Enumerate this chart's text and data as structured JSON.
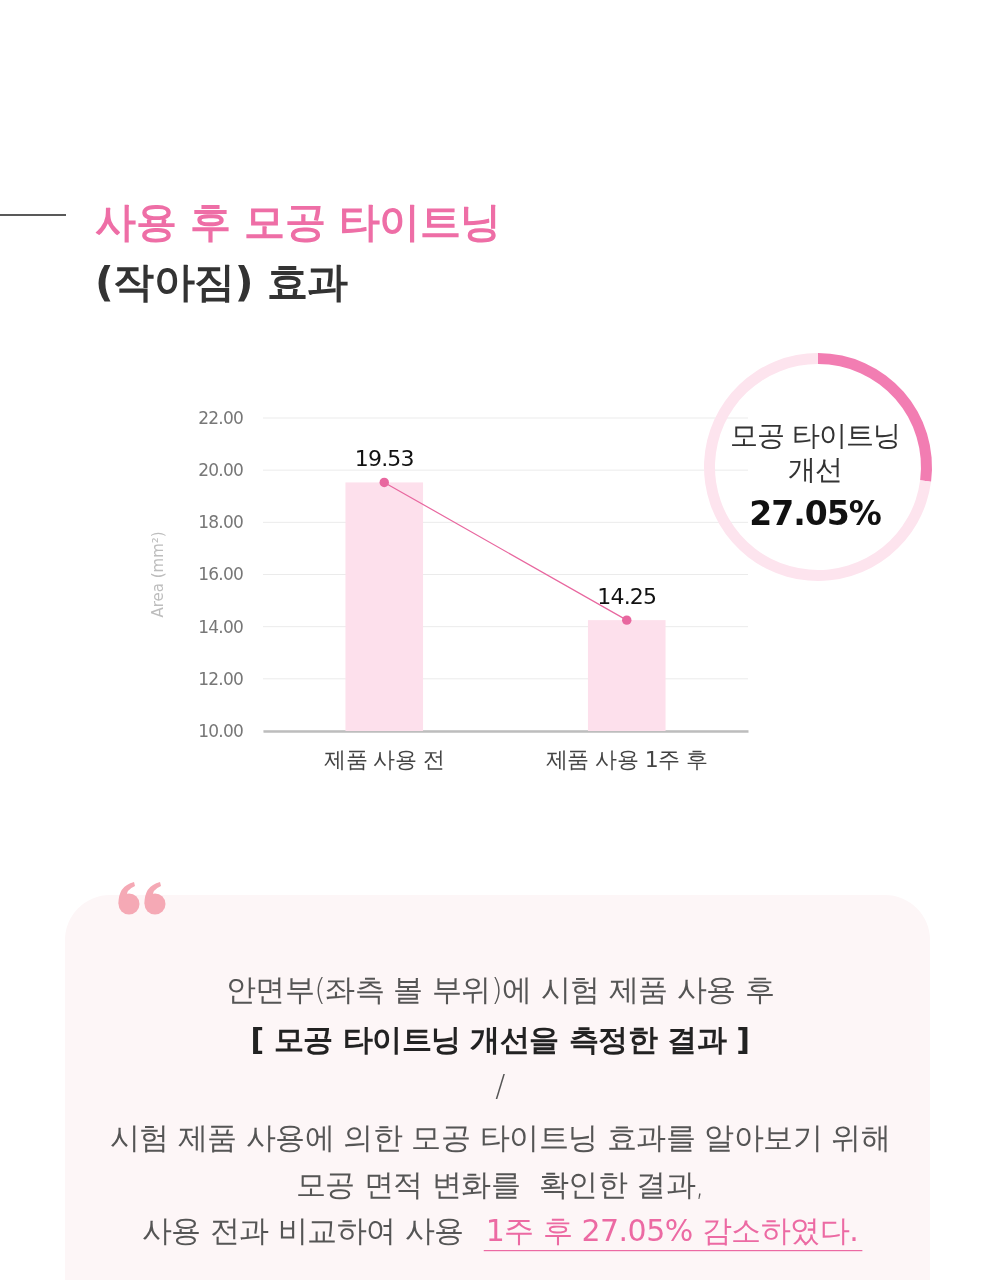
{
  "chart_data": [
    {
      "type": "bar",
      "title": "사용 후 모공 타이트닝",
      "subtitle": "(작아짐) 효과",
      "ylabel": "Area (mm²)",
      "categories": [
        "제품 사용 전",
        "제품 사용 1주 후"
      ],
      "series": [
        {
          "type": "bar",
          "color": "#fde0ec",
          "values": [
            19.53,
            14.25
          ]
        },
        {
          "type": "line",
          "color": "#e8679f",
          "values": [
            19.53,
            14.25
          ],
          "value_labels": [
            "19.53",
            "14.25"
          ]
        }
      ],
      "ylim": [
        10,
        22
      ],
      "yticks": [
        {
          "value": 10,
          "label": "10.00"
        },
        {
          "value": 12,
          "label": "12.00"
        },
        {
          "value": 14,
          "label": "14.00"
        },
        {
          "value": 16,
          "label": "16.00"
        },
        {
          "value": 18,
          "label": "18.00"
        },
        {
          "value": 20,
          "label": "20.00"
        },
        {
          "value": 22,
          "label": "22.00"
        }
      ],
      "grid": "y",
      "marker": "circle",
      "annotations": [
        "안면부(좌측 볼 부위)에 시험 제품 사용 후",
        "[ 모공 타이트닝 개선을 측정한 결과 ]",
        "/",
        "시험 제품 사용에 의한 모공 타이트닝 효과를 알아보기 위해",
        "모공 면적 변화를  확인한 결과,",
        "사용 전과 비교하여 사용",
        "1주 후 27.05% 감소하였다."
      ]
    },
    {
      "type": "donut",
      "title": "모공 타이트닝 개선",
      "categories": [
        null,
        null
      ],
      "values": [
        27.05,
        72.95
      ],
      "colors": [
        "#f27db2",
        "#fde4ee"
      ],
      "annotations": [
        "27.05%"
      ]
    }
  ]
}
